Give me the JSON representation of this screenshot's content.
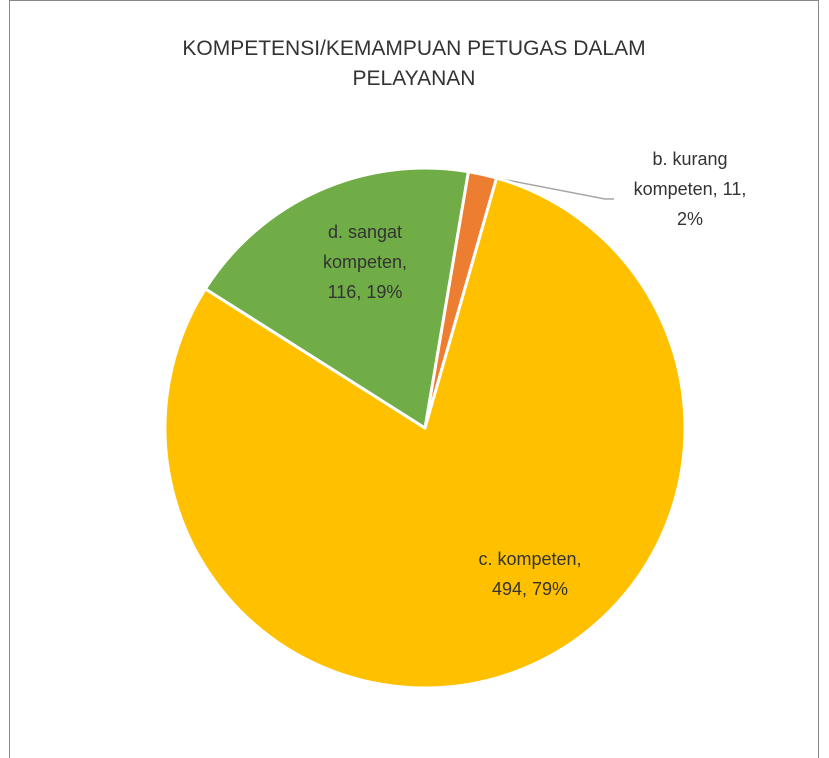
{
  "chart_data": {
    "type": "pie",
    "title": "KOMPETENSI/KEMAMPUAN PETUGAS DALAM PELAYANAN",
    "categories": [
      "b. kurang kompeten",
      "c. kompeten",
      "d. sangat kompeten"
    ],
    "values": [
      11,
      494,
      116
    ],
    "colors": [
      "#ed7d31",
      "#ffc000",
      "#70ad47"
    ],
    "data_labels": [
      [
        "b. kurang",
        "kompeten, 11,",
        "2%"
      ],
      [
        "c. kompeten,",
        "494, 79%"
      ],
      [
        "d. sangat",
        "kompeten,",
        "116, 19%"
      ]
    ]
  }
}
